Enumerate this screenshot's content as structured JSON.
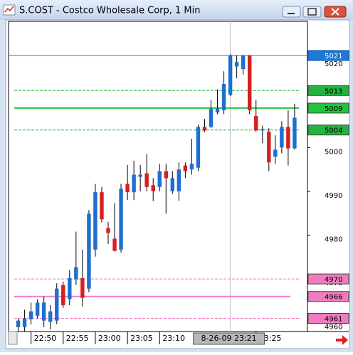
{
  "window_title": "S.COST - Costco Wholesale Corp, 1 Min",
  "chart_data": {
    "type": "candlestick",
    "up_color": "#1e6fd0",
    "down_color": "#d42020",
    "ylim": [
      4958,
      5028.8
    ],
    "yticks": [
      5020,
      5010,
      5000,
      4990,
      4980,
      4970,
      4960
    ],
    "xlim": [
      -1.5,
      45
    ],
    "xticks": [
      {
        "value": 2,
        "label": "22:50"
      },
      {
        "value": 7,
        "label": "22:55"
      },
      {
        "value": 12,
        "label": "23:00"
      },
      {
        "value": 17,
        "label": "23:05"
      },
      {
        "value": 22,
        "label": "23:10"
      },
      {
        "value": 37,
        "label": "23:25"
      }
    ],
    "crosshair": {
      "value": 33,
      "label": "8-26-09 23:21"
    },
    "levels": [
      {
        "value": 5021,
        "color": "#1e78d6",
        "style": "solid"
      },
      {
        "value": 5013,
        "color": "#22b43c",
        "style": "dashed"
      },
      {
        "value": 5009,
        "color": "#22c43c",
        "style": "solid"
      },
      {
        "value": 5004,
        "color": "#22b43c",
        "style": "dashed"
      },
      {
        "value": 4970,
        "color": "#f07cc0",
        "style": "dashed"
      },
      {
        "value": 4966,
        "color": "#f07cc0",
        "style": "solid"
      },
      {
        "value": 4961,
        "color": "#f07cc0",
        "style": "dashed"
      }
    ],
    "open": [
      4959,
      4959,
      4960.8,
      4961.6,
      4960.5,
      4960.2,
      4960.5,
      4968.6,
      4965.4,
      4969.9,
      4970.2,
      4967.8,
      4976.7,
      4989.8,
      4981.6,
      4979.2,
      4976.7,
      4991.7,
      4989.8,
      4993.3,
      4994.1,
      4991.4,
      4991,
      4994.6,
      4990,
      4990,
      4995.9,
      4995,
      4995.4,
      5004.7,
      5004.7,
      5008,
      5008.5,
      5012,
      5018.5,
      5017.9,
      5021.1,
      5007.2,
      5003.9,
      5003.6,
      4997.9,
      5000,
      5004.7,
      4999.8
    ],
    "high": [
      4961,
      4963,
      4964.6,
      4965.4,
      4966,
      4964,
      4969,
      4969.4,
      4972,
      4980.8,
      4976.7,
      4985.7,
      4991.7,
      4991,
      4983,
      4987.3,
      4991.7,
      4996,
      4997,
      4996,
      4998.5,
      4993,
      4996.3,
      4996.3,
      4994.6,
      4996.6,
      4996.6,
      5002,
      5005.2,
      5006.5,
      5010.9,
      5013.3,
      5017.4,
      5021.3,
      5021.1,
      5021.1,
      5021.1,
      5010.9,
      5005,
      5004.4,
      5002.8,
      5006,
      5008.5,
      5010
    ],
    "low": [
      4958,
      4958,
      4959.6,
      4961,
      4959,
      4958.5,
      4959.7,
      4963.4,
      4964,
      4968.6,
      4963.7,
      4967,
      4975.1,
      4982.9,
      4978,
      4976.3,
      4976,
      4988,
      4988,
      4990,
      4990,
      4987.8,
      4990,
      4984.9,
      4989.4,
      4987.8,
      4993,
      4993.8,
      4994.6,
      5003.5,
      5004.4,
      5007.6,
      5007.6,
      5011.7,
      5015.8,
      5016.6,
      5007.6,
      5003.6,
      5001,
      4994.6,
      4996.3,
      4998.7,
      4995.9,
      4999.5
    ],
    "close": [
      4960.5,
      4961,
      4962.6,
      4964.6,
      4964.6,
      4962.6,
      4967.8,
      4964,
      4970.2,
      4972.7,
      4965.7,
      4984.9,
      4989.8,
      4983.6,
      4980.5,
      4976.4,
      4990.6,
      4989.8,
      4993.8,
      4993.8,
      4991,
      4990,
      4994.6,
      4993,
      4993,
      4995,
      4994.6,
      4996.3,
      5004.7,
      5003.9,
      5008.8,
      5008.9,
      5014.5,
      5021,
      5019.5,
      5021.1,
      5008.5,
      5003.9,
      5004.2,
      4996.6,
      4999.5,
      5004.7,
      4999.8,
      5006.8
    ]
  }
}
